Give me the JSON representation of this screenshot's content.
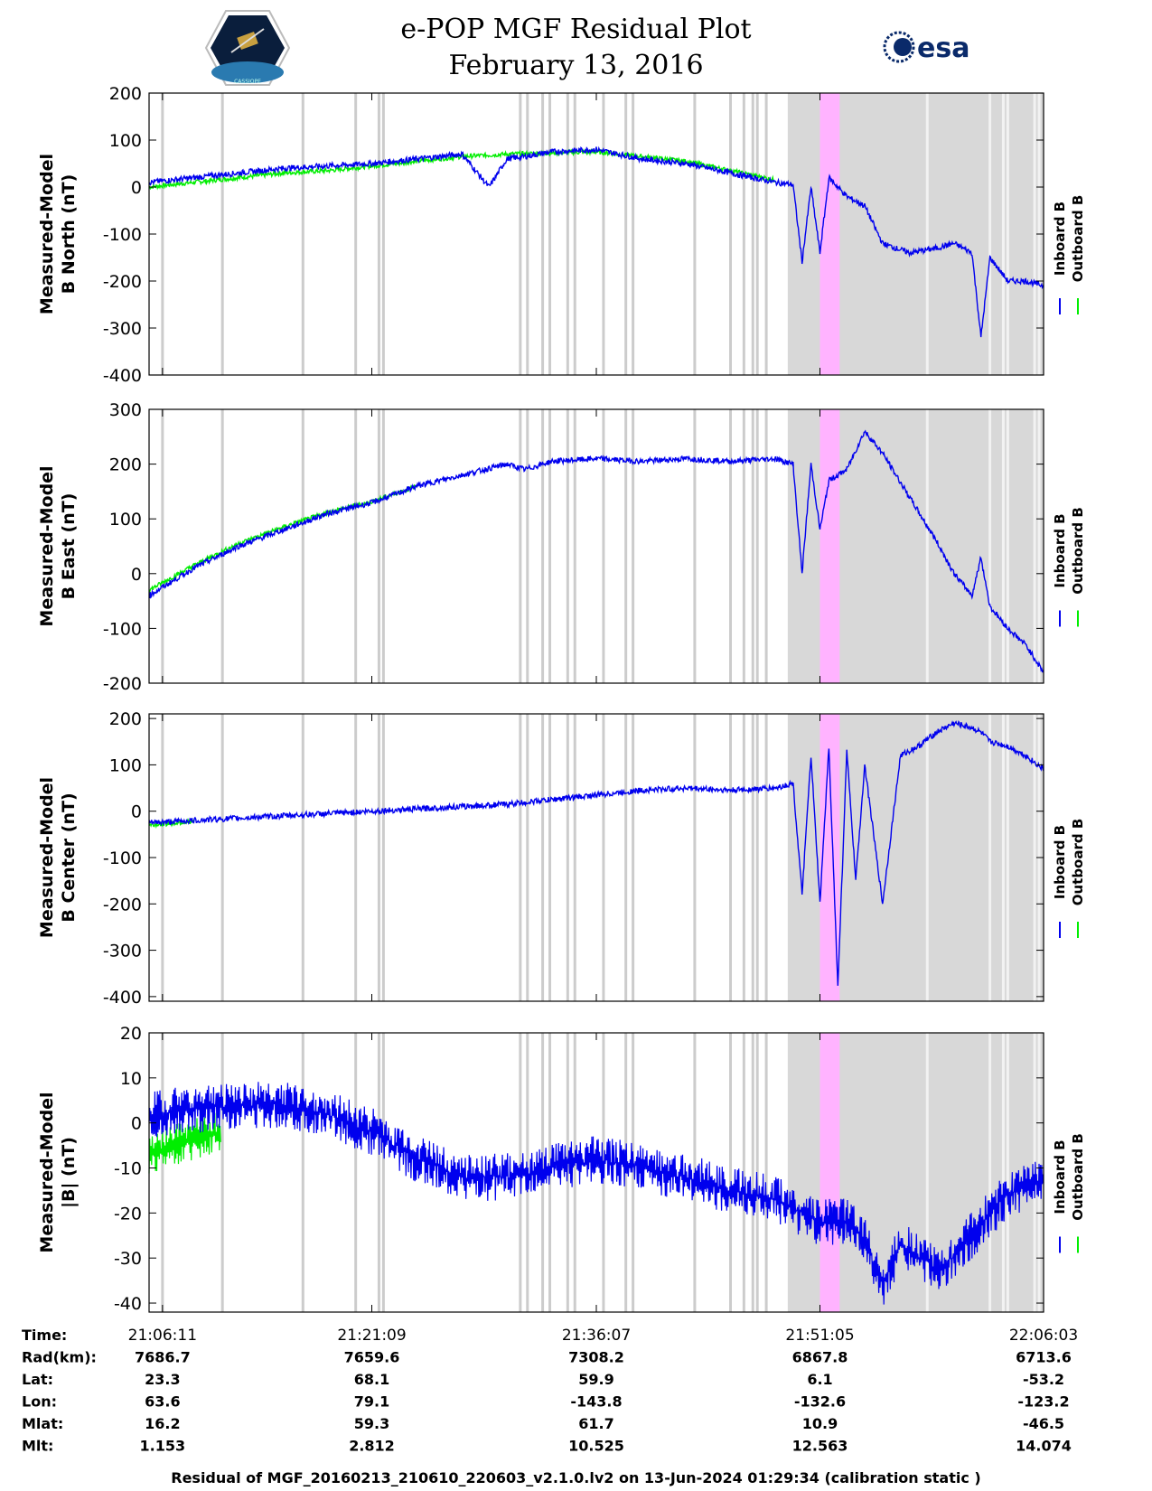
{
  "header": {
    "title": "e-POP MGF Residual Plot",
    "date": "February 13, 2016",
    "left_logo": "CASSIOPE",
    "right_logo": "esa"
  },
  "colors": {
    "inboard": "#0000ee",
    "outboard": "#00ee00",
    "gap_band": "#d8d8d8",
    "gap_line": "#cccccc",
    "highlight": "#ffb3ff"
  },
  "legend": {
    "inboard": "Inboard B",
    "outboard": "Outboard B"
  },
  "chart_data": [
    {
      "type": "line",
      "id": "north",
      "ylabel_line1": "Measured-Model",
      "ylabel_line2": "B North (nT)",
      "ylim": [
        -400,
        200
      ],
      "yticks": [
        200,
        100,
        0,
        -100,
        -200,
        -300,
        -400
      ],
      "series": [
        {
          "name": "Inboard B",
          "x": [
            0,
            0.05,
            0.1,
            0.15,
            0.2,
            0.25,
            0.3,
            0.35,
            0.38,
            0.4,
            0.42,
            0.45,
            0.5,
            0.55,
            0.6,
            0.65,
            0.7,
            0.72,
            0.73,
            0.74,
            0.75,
            0.76,
            0.78,
            0.8,
            0.82,
            0.85,
            0.88,
            0.9,
            0.92,
            0.93,
            0.94,
            0.96,
            0.98,
            1.0
          ],
          "y": [
            10,
            20,
            30,
            40,
            45,
            50,
            60,
            70,
            0,
            60,
            65,
            75,
            80,
            60,
            50,
            30,
            10,
            5,
            -160,
            0,
            -140,
            20,
            -20,
            -40,
            -120,
            -140,
            -130,
            -120,
            -140,
            -320,
            -150,
            -200,
            -200,
            -210
          ]
        },
        {
          "name": "Outboard B",
          "x": [
            0,
            0.05,
            0.1,
            0.15,
            0.2,
            0.25,
            0.3,
            0.35,
            0.4,
            0.5,
            0.6,
            0.65,
            0.7
          ],
          "y": [
            0,
            10,
            20,
            30,
            35,
            45,
            55,
            65,
            70,
            75,
            55,
            35,
            15
          ]
        }
      ]
    },
    {
      "type": "line",
      "id": "east",
      "ylabel_line1": "Measured-Model",
      "ylabel_line2": "B East (nT)",
      "ylim": [
        -200,
        300
      ],
      "yticks": [
        300,
        200,
        100,
        0,
        -100,
        -200
      ],
      "series": [
        {
          "name": "Inboard B",
          "x": [
            0,
            0.05,
            0.1,
            0.15,
            0.2,
            0.25,
            0.3,
            0.35,
            0.4,
            0.42,
            0.45,
            0.5,
            0.55,
            0.6,
            0.65,
            0.7,
            0.72,
            0.73,
            0.74,
            0.75,
            0.76,
            0.78,
            0.8,
            0.82,
            0.85,
            0.88,
            0.9,
            0.92,
            0.93,
            0.94,
            0.96,
            0.98,
            1.0
          ],
          "y": [
            -40,
            10,
            50,
            80,
            110,
            130,
            160,
            180,
            200,
            190,
            205,
            210,
            205,
            210,
            205,
            210,
            200,
            0,
            200,
            80,
            170,
            190,
            260,
            220,
            140,
            60,
            0,
            -40,
            30,
            -60,
            -100,
            -130,
            -180
          ]
        },
        {
          "name": "Outboard B",
          "x": [
            0,
            0.05,
            0.1,
            0.15,
            0.2,
            0.25,
            0.3
          ],
          "y": [
            -30,
            15,
            55,
            85,
            112,
            132,
            160
          ]
        }
      ]
    },
    {
      "type": "line",
      "id": "center",
      "ylabel_line1": "Measured-Model",
      "ylabel_line2": "B Center (nT)",
      "ylim": [
        -410,
        210
      ],
      "yticks": [
        200,
        100,
        0,
        -100,
        -200,
        -300,
        -400
      ],
      "series": [
        {
          "name": "Inboard B",
          "x": [
            0,
            0.05,
            0.1,
            0.15,
            0.2,
            0.25,
            0.3,
            0.35,
            0.4,
            0.45,
            0.5,
            0.55,
            0.6,
            0.65,
            0.7,
            0.72,
            0.73,
            0.74,
            0.75,
            0.76,
            0.77,
            0.78,
            0.79,
            0.8,
            0.82,
            0.84,
            0.86,
            0.88,
            0.9,
            0.92,
            0.93,
            0.94,
            0.96,
            0.98,
            1.0
          ],
          "y": [
            -25,
            -20,
            -15,
            -10,
            -5,
            0,
            5,
            10,
            15,
            25,
            35,
            45,
            50,
            45,
            50,
            60,
            -180,
            120,
            -200,
            140,
            -380,
            130,
            -150,
            100,
            -200,
            120,
            140,
            170,
            190,
            180,
            170,
            150,
            140,
            120,
            90
          ]
        },
        {
          "name": "Outboard B",
          "x": [
            0,
            0.05
          ],
          "y": [
            -30,
            -22
          ]
        }
      ]
    },
    {
      "type": "line",
      "id": "magnitude",
      "ylabel_line1": "Measured-Model",
      "ylabel_line2": "|B| (nT)",
      "ylim": [
        -42,
        20
      ],
      "yticks": [
        20,
        10,
        0,
        -10,
        -20,
        -30,
        -40
      ],
      "series": [
        {
          "name": "Inboard B",
          "x": [
            0,
            0.05,
            0.1,
            0.15,
            0.2,
            0.25,
            0.3,
            0.35,
            0.4,
            0.45,
            0.5,
            0.55,
            0.6,
            0.65,
            0.7,
            0.75,
            0.78,
            0.8,
            0.82,
            0.84,
            0.86,
            0.88,
            0.9,
            0.92,
            0.94,
            0.96,
            0.98,
            1.0
          ],
          "y": [
            2,
            3,
            4,
            4,
            2,
            -2,
            -8,
            -12,
            -12,
            -10,
            -8,
            -10,
            -12,
            -15,
            -17,
            -22,
            -22,
            -26,
            -36,
            -27,
            -30,
            -32,
            -30,
            -25,
            -20,
            -16,
            -14,
            -12
          ]
        },
        {
          "name": "Outboard B",
          "x": [
            0,
            0.03,
            0.06,
            0.08
          ],
          "y": [
            -7,
            -5,
            -3,
            -2
          ]
        }
      ]
    }
  ],
  "x_axis": {
    "tick_labels": [
      "21:06:11",
      "21:21:09",
      "21:36:07",
      "21:51:05",
      "22:06:03"
    ]
  },
  "gap_lines": [
    0.015,
    0.082,
    0.172,
    0.231,
    0.257,
    0.262,
    0.415,
    0.423,
    0.44,
    0.448,
    0.468,
    0.476,
    0.508,
    0.533,
    0.541,
    0.61,
    0.65,
    0.665,
    0.675,
    0.68,
    0.69,
    0.87,
    0.94,
    0.955,
    0.96,
    0.99,
    0.995
  ],
  "gap_band": [
    0.714,
    1.0
  ],
  "highlight_band": [
    0.75,
    0.772
  ],
  "orbit_table": {
    "rows": [
      {
        "label": "Time:",
        "values": [
          "21:06:11",
          "21:21:09",
          "21:36:07",
          "21:51:05",
          "22:06:03"
        ]
      },
      {
        "label": "Rad(km):",
        "values": [
          "7686.7",
          "7659.6",
          "7308.2",
          "6867.8",
          "6713.6"
        ]
      },
      {
        "label": "Lat:",
        "values": [
          "23.3",
          "68.1",
          "59.9",
          "6.1",
          "-53.2"
        ]
      },
      {
        "label": "Lon:",
        "values": [
          "63.6",
          "79.1",
          "-143.8",
          "-132.6",
          "-123.2"
        ]
      },
      {
        "label": "Mlat:",
        "values": [
          "16.2",
          "59.3",
          "61.7",
          "10.9",
          "-46.5"
        ]
      },
      {
        "label": "Mlt:",
        "values": [
          "1.153",
          "2.812",
          "10.525",
          "12.563",
          "14.074"
        ]
      }
    ]
  },
  "footer": "Residual of MGF_20160213_210610_220603_v2.1.0.lv2 on 13-Jun-2024 01:29:34 (calibration static )"
}
